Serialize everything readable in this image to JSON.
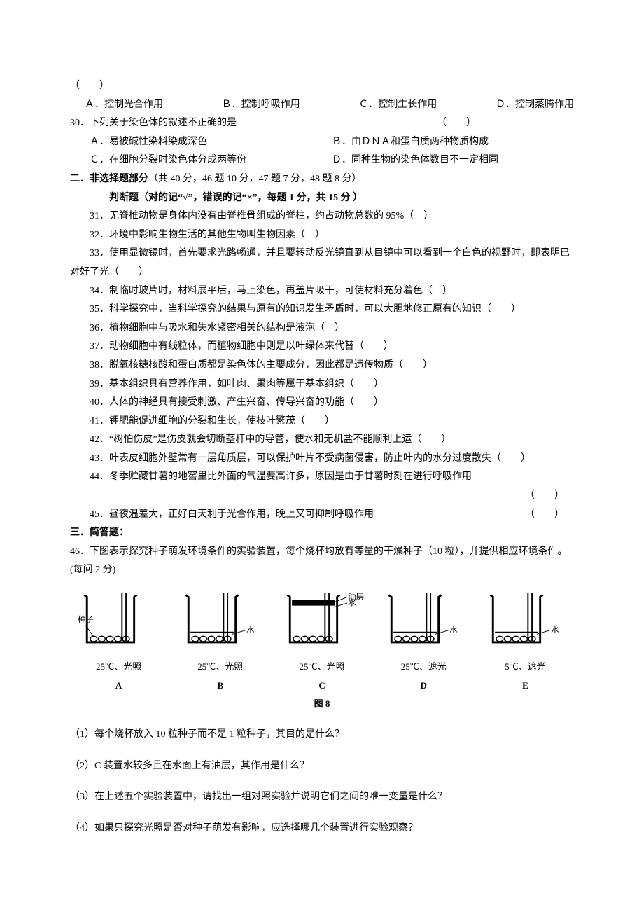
{
  "q29_blank": "（　　）",
  "q29_options": {
    "a": "Ａ．控制光合作用",
    "b": "Ｂ．控制呼吸作用",
    "c": "Ｃ．控制生长作用",
    "d": "Ｄ．控制蒸腾作用"
  },
  "q30": {
    "stem": "30．下列关于染色体的叙述不正确的是",
    "blank": "（　　）",
    "a": "Ａ．易被碱性染料染成深色",
    "b": "Ｂ．由ＤＮＡ和蛋白质两种物质构成",
    "c": "Ｃ．在细胞分裂时染色体分成两等份",
    "d": "Ｄ．同种生物的染色体数目不一定相同"
  },
  "section2": {
    "title": "二．非选择题部分",
    "note": "（共 40 分，46 题 10 分，47 题 7 分，48 题 8 分）",
    "judge_title": "判断题（对的记“√”，错误的记“×”，每题 1 分，共 15 分 ）"
  },
  "judge": {
    "q31": "31．无脊椎动物是身体内没有由脊椎骨组成的脊柱，约占动物总数的 95%（　）",
    "q32": "32．环境中影响生物生活的其他生物叫生物因素（　）",
    "q33": "33．使用显微镜时，首先要求光路畅通，并且要转动反光镜直到从目镜中可以看到一个白色的视野时，即表明已对好了光（　　）",
    "q34": "34．制临时玻片时，材料展平后，马上染色，再盖片吸干，可使材料充分着色（　）",
    "q35": "35．科学探究中，当科学探究的结果与原有的知识发生矛盾时，可以大胆地修正原有的知识（　　）",
    "q36": "36．植物细胞中与吸水和失水紧密相关的结构是液泡（　）",
    "q37": "37．动物细胞中有线粒体，而植物细胞中则是以叶绿体来代替（　　）",
    "q38": "38．脱氧核糖核酸和蛋白质都是染色体的主要成分，因此都是遗传物质（　　）",
    "q39": "39．基本组织具有营养作用，如叶肉、果肉等属于基本组织（　　）",
    "q40": "40．人体的神经具有接受刺激、产生兴奋、传导兴奋的功能（　　）",
    "q41": "41．钾肥能促进细胞的分裂和生长，使枝叶繁茂（　　）",
    "q42": "42．“树怕伤皮”是伤皮就会切断茎杆中的导管，使水和无机盐不能顺利上运（　　）",
    "q43": "43．叶表皮细胞外壁常有一层角质层，可以保护叶片不受病菌侵害，防止叶内的水分过度散失（　　）",
    "q44": "44．冬季贮藏甘薯的地窖里比外面的气温要高许多，原因是由于甘薯时刻在进行呼吸作用",
    "q44_blank": "（　　）",
    "q45": "45．昼夜温差大，正好白天利于光合作用，晚上又可抑制呼吸作用",
    "q45_blank": "（　　）"
  },
  "section3": "三．简答题：",
  "q46": {
    "stem": "46．下图表示探究种子萌发环境条件的实验装置，每个烧杯均放有等量的干燥种子（10 粒），并提供相应环境条件。(每问 2 分)",
    "sub1": "（1）每个烧杯放入 10 粒种子而不是 1 粒种子，其目的是什么？",
    "sub2": "（2）C 装置水较多且在水面上有油层，其作用是什么？",
    "sub3": "（3）在上述五个实验装置中，请找出一组对照实验并说明它们之间的唯一变量是什么？",
    "sub4": "（4）如果只探究光照是否对种子萌发有影响，应选择哪几个装置进行实验观察？"
  },
  "beakers": [
    {
      "letter": "A",
      "temp": "25℃、光照",
      "water": 0,
      "oil": false,
      "seed_label": "种子",
      "water_label": ""
    },
    {
      "letter": "B",
      "temp": "25℃、光照",
      "water": 15,
      "oil": false,
      "seed_label": "",
      "water_label": "水"
    },
    {
      "letter": "C",
      "temp": "25℃、光照",
      "water": 55,
      "oil": true,
      "seed_label": "",
      "water_label": "水",
      "oil_label": "油层"
    },
    {
      "letter": "D",
      "temp": "25℃、遮光",
      "water": 15,
      "oil": false,
      "seed_label": "",
      "water_label": "水"
    },
    {
      "letter": "E",
      "temp": "5℃、遮光",
      "water": 15,
      "oil": false,
      "seed_label": "",
      "water_label": "水"
    }
  ],
  "fig_caption": "图 8",
  "colors": {
    "text": "#000000",
    "bg": "#ffffff"
  }
}
